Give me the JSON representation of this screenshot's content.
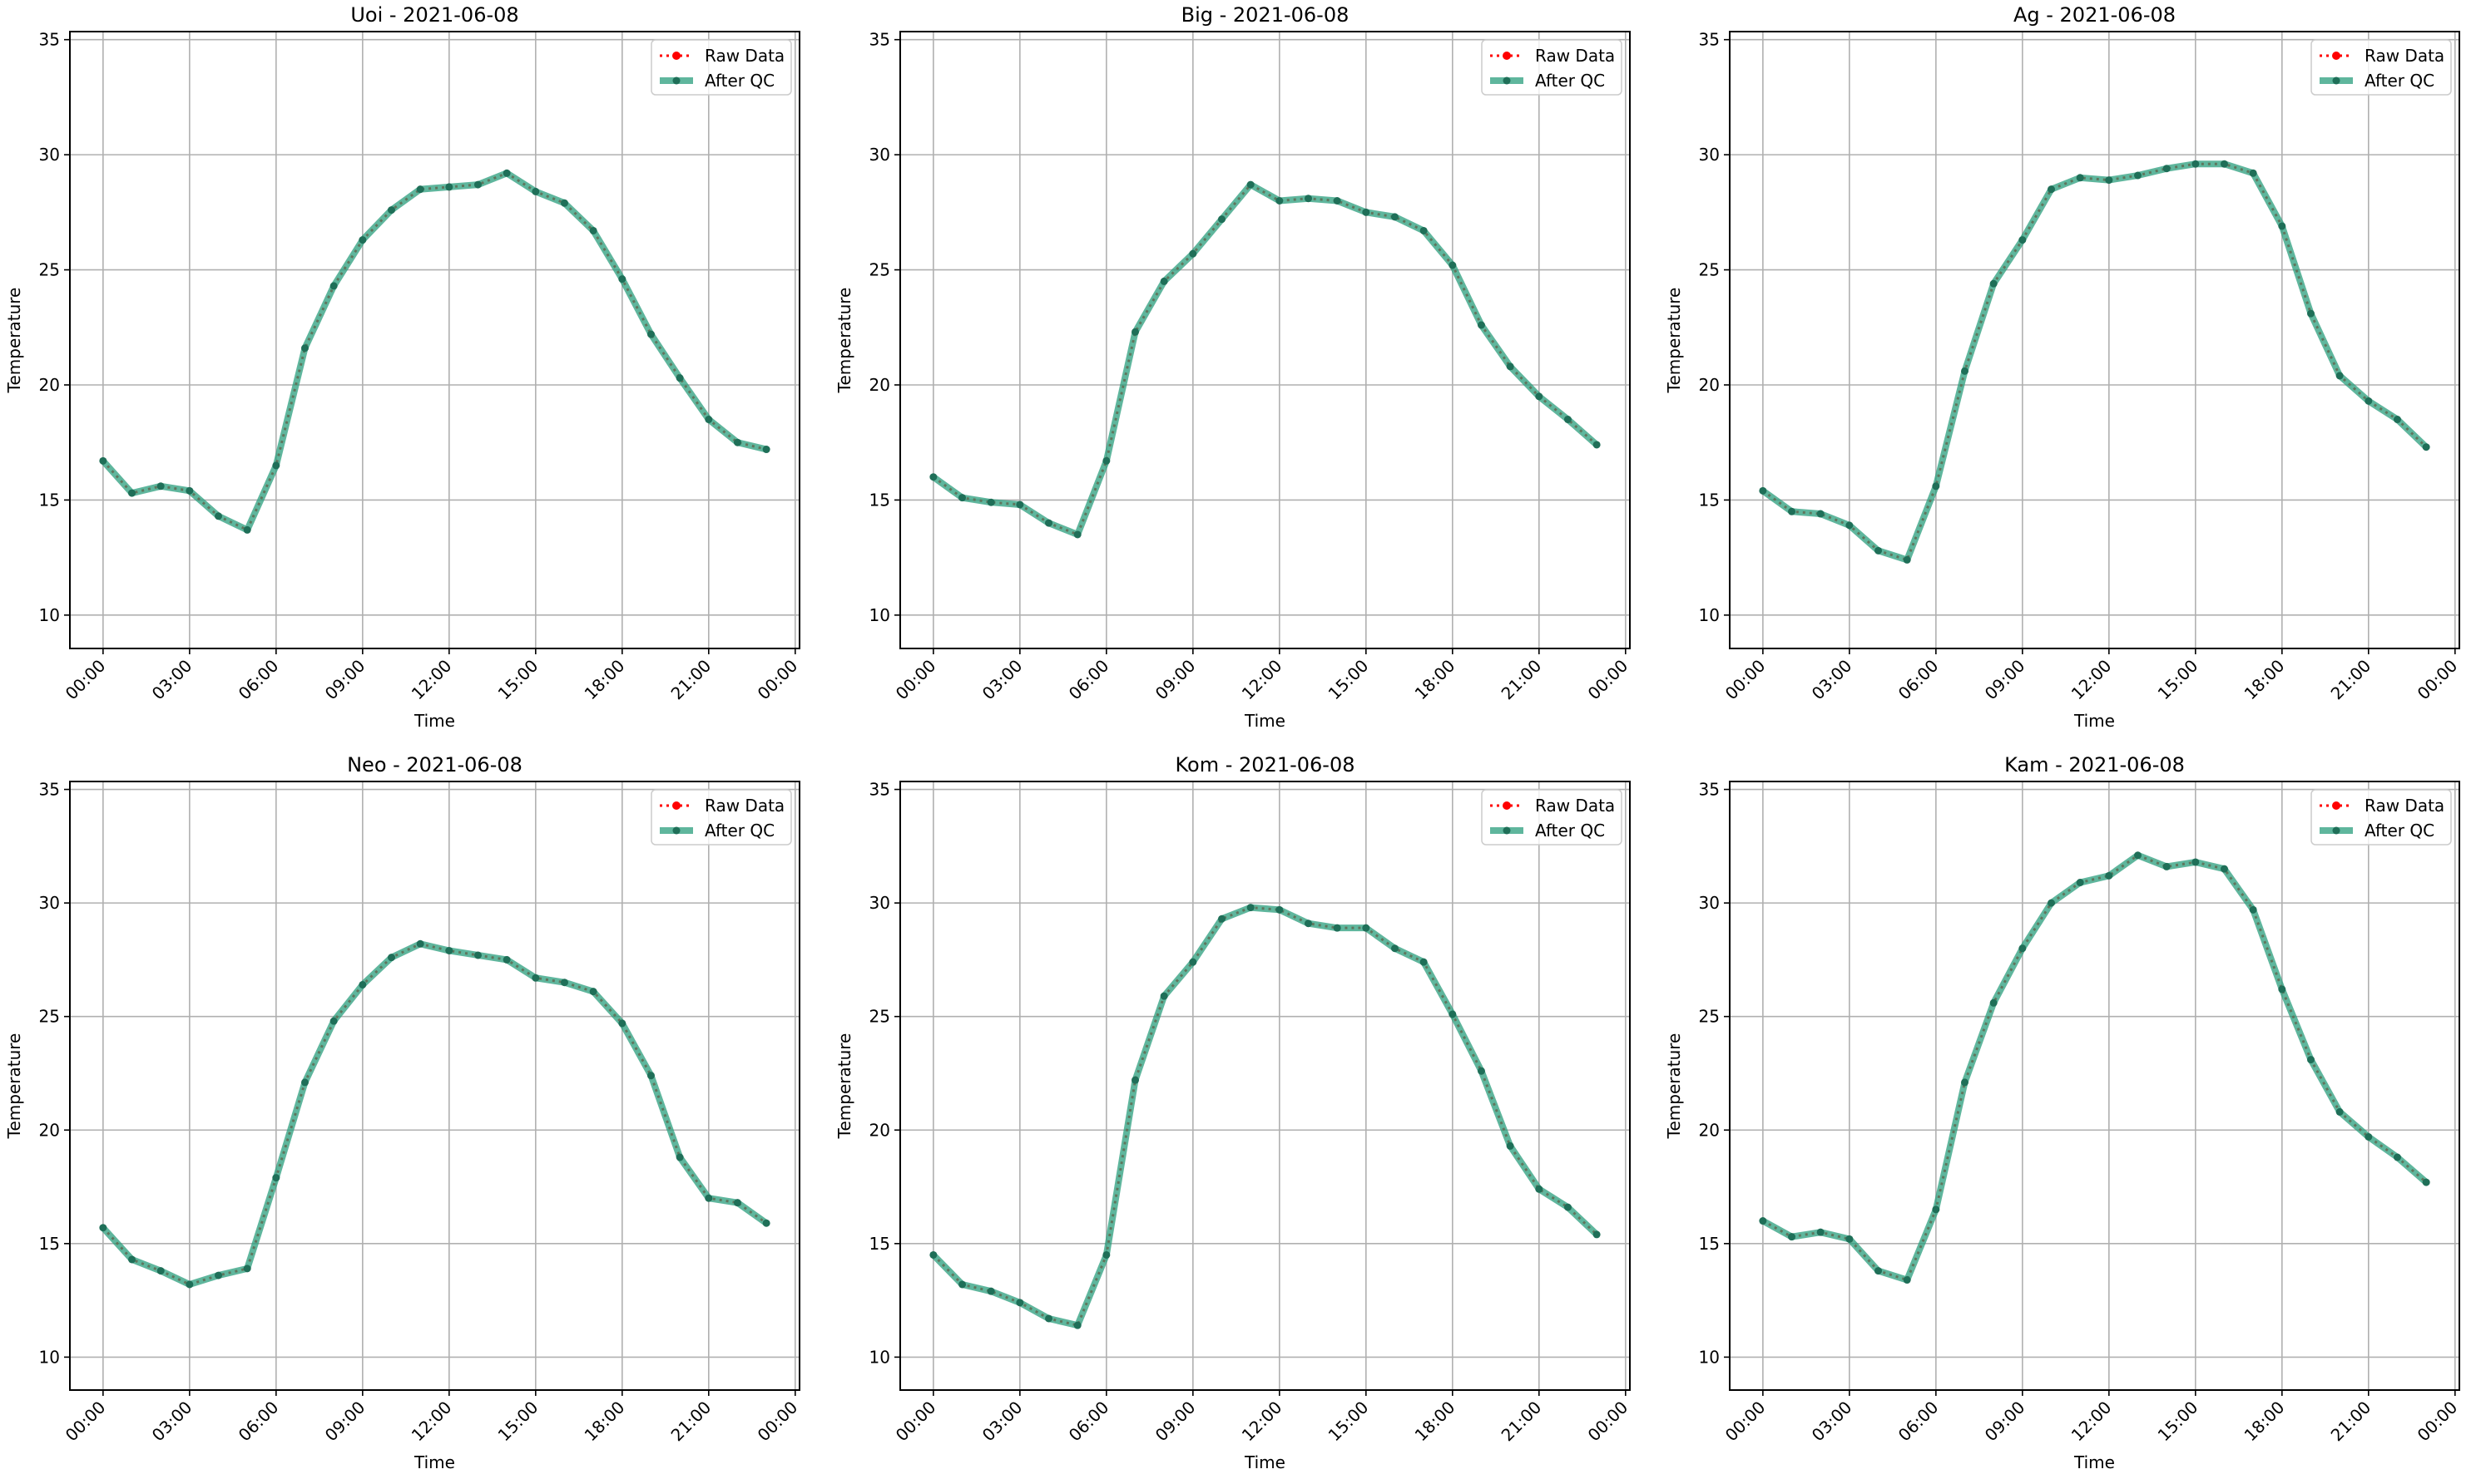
{
  "chart_data": [
    {
      "type": "line",
      "title": "Uoi - 2021-06-08",
      "xlabel": "Time",
      "ylabel": "Temperature",
      "ylim": [
        8.55,
        35.35
      ],
      "grid": true,
      "legend_placement": "top-right",
      "x_ticks": [
        "00:00",
        "03:00",
        "06:00",
        "09:00",
        "12:00",
        "15:00",
        "18:00",
        "21:00",
        "00:00"
      ],
      "y_ticks": [
        10,
        15,
        20,
        25,
        30,
        35
      ],
      "x_hours": [
        0,
        1,
        2,
        3,
        4,
        5,
        6,
        7,
        8,
        9,
        10,
        11,
        12,
        13,
        14,
        15,
        16,
        17,
        18,
        19,
        20,
        21,
        22,
        23
      ],
      "series": [
        {
          "name": "Raw Data",
          "values": [
            16.7,
            15.3,
            15.6,
            15.4,
            14.3,
            13.7,
            16.5,
            21.6,
            24.3,
            26.3,
            27.6,
            28.5,
            28.6,
            28.7,
            29.2,
            28.4,
            27.9,
            26.7,
            24.6,
            22.2,
            20.3,
            18.5,
            17.5,
            17.2
          ]
        },
        {
          "name": "After QC",
          "values": [
            16.7,
            15.3,
            15.6,
            15.4,
            14.3,
            13.7,
            16.5,
            21.6,
            24.3,
            26.3,
            27.6,
            28.5,
            28.6,
            28.7,
            29.2,
            28.4,
            27.9,
            26.7,
            24.6,
            22.2,
            20.3,
            18.5,
            17.5,
            17.2
          ]
        }
      ]
    },
    {
      "type": "line",
      "title": "Big - 2021-06-08",
      "xlabel": "Time",
      "ylabel": "Temperature",
      "ylim": [
        8.55,
        35.35
      ],
      "grid": true,
      "legend_placement": "top-right",
      "x_ticks": [
        "00:00",
        "03:00",
        "06:00",
        "09:00",
        "12:00",
        "15:00",
        "18:00",
        "21:00",
        "00:00"
      ],
      "y_ticks": [
        10,
        15,
        20,
        25,
        30,
        35
      ],
      "x_hours": [
        0,
        1,
        2,
        3,
        4,
        5,
        6,
        7,
        8,
        9,
        10,
        11,
        12,
        13,
        14,
        15,
        16,
        17,
        18,
        19,
        20,
        21,
        22,
        23
      ],
      "series": [
        {
          "name": "Raw Data",
          "values": [
            16.0,
            15.1,
            14.9,
            14.8,
            14.0,
            13.5,
            16.7,
            22.3,
            24.5,
            25.7,
            27.2,
            28.7,
            28.0,
            28.1,
            28.0,
            27.5,
            27.3,
            26.7,
            25.2,
            22.6,
            20.8,
            19.5,
            18.5,
            17.4
          ]
        },
        {
          "name": "After QC",
          "values": [
            16.0,
            15.1,
            14.9,
            14.8,
            14.0,
            13.5,
            16.7,
            22.3,
            24.5,
            25.7,
            27.2,
            28.7,
            28.0,
            28.1,
            28.0,
            27.5,
            27.3,
            26.7,
            25.2,
            22.6,
            20.8,
            19.5,
            18.5,
            17.4
          ]
        }
      ]
    },
    {
      "type": "line",
      "title": "Ag - 2021-06-08",
      "xlabel": "Time",
      "ylabel": "Temperature",
      "ylim": [
        8.55,
        35.35
      ],
      "grid": true,
      "legend_placement": "top-right",
      "x_ticks": [
        "00:00",
        "03:00",
        "06:00",
        "09:00",
        "12:00",
        "15:00",
        "18:00",
        "21:00",
        "00:00"
      ],
      "y_ticks": [
        10,
        15,
        20,
        25,
        30,
        35
      ],
      "x_hours": [
        0,
        1,
        2,
        3,
        4,
        5,
        6,
        7,
        8,
        9,
        10,
        11,
        12,
        13,
        14,
        15,
        16,
        17,
        18,
        19,
        20,
        21,
        22,
        23
      ],
      "series": [
        {
          "name": "Raw Data",
          "values": [
            15.4,
            14.5,
            14.4,
            13.9,
            12.8,
            12.4,
            15.6,
            20.6,
            24.4,
            26.3,
            28.5,
            29.0,
            28.9,
            29.1,
            29.4,
            29.6,
            29.6,
            29.2,
            26.9,
            23.1,
            20.4,
            19.3,
            18.5,
            17.3
          ]
        },
        {
          "name": "After QC",
          "values": [
            15.4,
            14.5,
            14.4,
            13.9,
            12.8,
            12.4,
            15.6,
            20.6,
            24.4,
            26.3,
            28.5,
            29.0,
            28.9,
            29.1,
            29.4,
            29.6,
            29.6,
            29.2,
            26.9,
            23.1,
            20.4,
            19.3,
            18.5,
            17.3
          ]
        }
      ]
    },
    {
      "type": "line",
      "title": "Neo - 2021-06-08",
      "xlabel": "Time",
      "ylabel": "Temperature",
      "ylim": [
        8.55,
        35.35
      ],
      "grid": true,
      "legend_placement": "top-right",
      "x_ticks": [
        "00:00",
        "03:00",
        "06:00",
        "09:00",
        "12:00",
        "15:00",
        "18:00",
        "21:00",
        "00:00"
      ],
      "y_ticks": [
        10,
        15,
        20,
        25,
        30,
        35
      ],
      "x_hours": [
        0,
        1,
        2,
        3,
        4,
        5,
        6,
        7,
        8,
        9,
        10,
        11,
        12,
        13,
        14,
        15,
        16,
        17,
        18,
        19,
        20,
        21,
        22,
        23
      ],
      "series": [
        {
          "name": "Raw Data",
          "values": [
            15.7,
            14.3,
            13.8,
            13.2,
            13.6,
            13.9,
            17.9,
            22.1,
            24.8,
            26.4,
            27.6,
            28.2,
            27.9,
            27.7,
            27.5,
            26.7,
            26.5,
            26.1,
            24.7,
            22.4,
            18.8,
            17.0,
            16.8,
            15.9
          ]
        },
        {
          "name": "After QC",
          "values": [
            15.7,
            14.3,
            13.8,
            13.2,
            13.6,
            13.9,
            17.9,
            22.1,
            24.8,
            26.4,
            27.6,
            28.2,
            27.9,
            27.7,
            27.5,
            26.7,
            26.5,
            26.1,
            24.7,
            22.4,
            18.8,
            17.0,
            16.8,
            15.9
          ]
        }
      ]
    },
    {
      "type": "line",
      "title": "Kom - 2021-06-08",
      "xlabel": "Time",
      "ylabel": "Temperature",
      "ylim": [
        8.55,
        35.35
      ],
      "grid": true,
      "legend_placement": "top-right",
      "x_ticks": [
        "00:00",
        "03:00",
        "06:00",
        "09:00",
        "12:00",
        "15:00",
        "18:00",
        "21:00",
        "00:00"
      ],
      "y_ticks": [
        10,
        15,
        20,
        25,
        30,
        35
      ],
      "x_hours": [
        0,
        1,
        2,
        3,
        4,
        5,
        6,
        7,
        8,
        9,
        10,
        11,
        12,
        13,
        14,
        15,
        16,
        17,
        18,
        19,
        20,
        21,
        22,
        23
      ],
      "series": [
        {
          "name": "Raw Data",
          "values": [
            14.5,
            13.2,
            12.9,
            12.4,
            11.7,
            11.4,
            14.5,
            22.2,
            25.9,
            27.4,
            29.3,
            29.8,
            29.7,
            29.1,
            28.9,
            28.9,
            28.0,
            27.4,
            25.1,
            22.6,
            19.3,
            17.4,
            16.6,
            15.4
          ]
        },
        {
          "name": "After QC",
          "values": [
            14.5,
            13.2,
            12.9,
            12.4,
            11.7,
            11.4,
            14.5,
            22.2,
            25.9,
            27.4,
            29.3,
            29.8,
            29.7,
            29.1,
            28.9,
            28.9,
            28.0,
            27.4,
            25.1,
            22.6,
            19.3,
            17.4,
            16.6,
            15.4
          ]
        }
      ]
    },
    {
      "type": "line",
      "title": "Kam - 2021-06-08",
      "xlabel": "Time",
      "ylabel": "Temperature",
      "ylim": [
        8.55,
        35.35
      ],
      "grid": true,
      "legend_placement": "top-right",
      "x_ticks": [
        "00:00",
        "03:00",
        "06:00",
        "09:00",
        "12:00",
        "15:00",
        "18:00",
        "21:00",
        "00:00"
      ],
      "y_ticks": [
        10,
        15,
        20,
        25,
        30,
        35
      ],
      "x_hours": [
        0,
        1,
        2,
        3,
        4,
        5,
        6,
        7,
        8,
        9,
        10,
        11,
        12,
        13,
        14,
        15,
        16,
        17,
        18,
        19,
        20,
        21,
        22,
        23
      ],
      "series": [
        {
          "name": "Raw Data",
          "values": [
            16.0,
            15.3,
            15.5,
            15.2,
            13.8,
            13.4,
            16.5,
            22.1,
            25.6,
            28.0,
            30.0,
            30.9,
            31.2,
            32.1,
            31.6,
            31.8,
            31.5,
            29.7,
            26.2,
            23.1,
            20.8,
            19.7,
            18.8,
            17.7
          ]
        },
        {
          "name": "After QC",
          "values": [
            16.0,
            15.3,
            15.5,
            15.2,
            13.8,
            13.4,
            16.5,
            22.1,
            25.6,
            28.0,
            30.0,
            30.9,
            31.2,
            32.1,
            31.6,
            31.8,
            31.5,
            29.7,
            26.2,
            23.1,
            20.8,
            19.7,
            18.8,
            17.7
          ]
        }
      ]
    }
  ],
  "colors": {
    "raw": "#ff0000",
    "qc": "#2a9d7c",
    "grid": "#b0b0b0"
  }
}
